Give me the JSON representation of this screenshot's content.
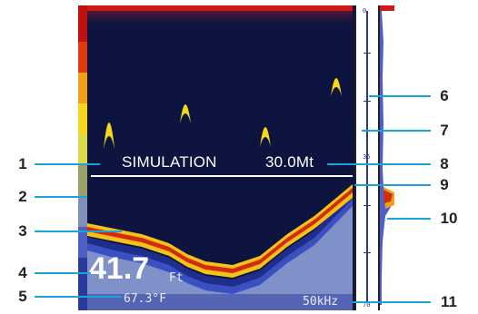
{
  "screen": {
    "simulation_label": "SIMULATION",
    "range_label": "30.0Mt",
    "depth_value": "41.7",
    "depth_unit": "Ft",
    "temperature": "67.3°F",
    "frequency": "50kHz"
  },
  "depth_scale": {
    "labels": [
      "0",
      "35",
      "70"
    ]
  },
  "callouts": [
    "1",
    "2",
    "3",
    "4",
    "5",
    "6",
    "7",
    "8",
    "9",
    "10",
    "11"
  ],
  "colors": {
    "water": "#0d1440",
    "surface": "#d01818",
    "bottom_hot": "#d42a10",
    "bottom_warm": "#f5c21a",
    "bottom_cool": "#2a3fb0",
    "leader_lines": "#1aa3d9"
  }
}
